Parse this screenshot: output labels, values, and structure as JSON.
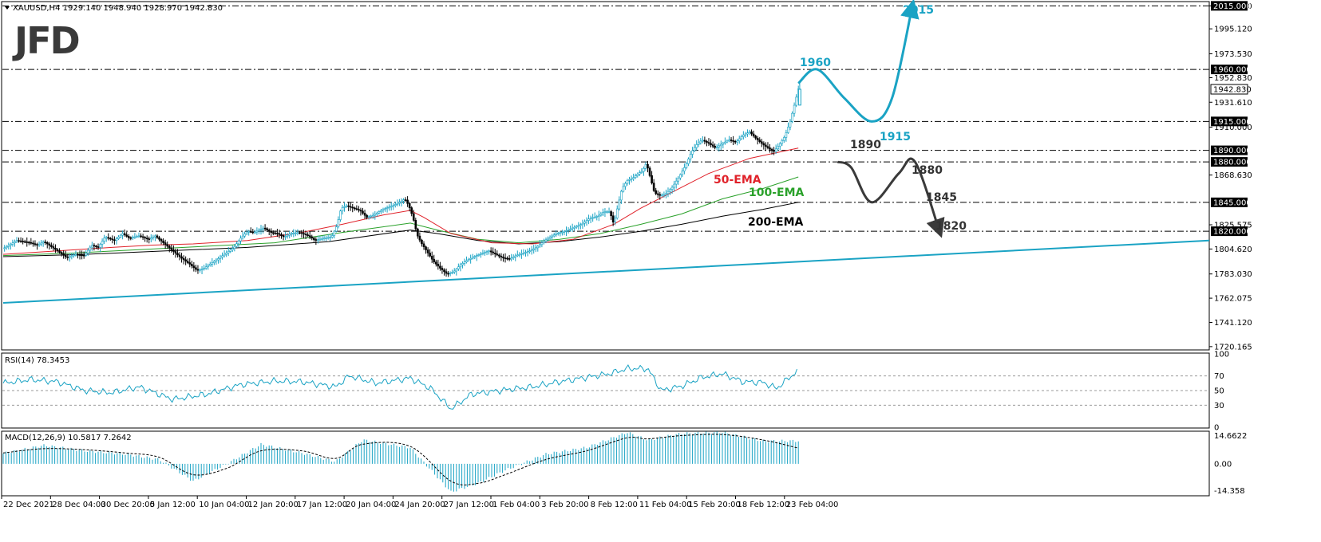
{
  "header": {
    "symbol_info": "XAUUSD,H4  1929.140 1948.940 1928.970 1942.830",
    "logo": "JFD"
  },
  "colors": {
    "candle_up": "#1aa3c4",
    "candle_down": "#000000",
    "ema50": "#e0222a",
    "ema100": "#2aa12a",
    "ema200": "#000000",
    "forecast_up": "#1aa3c4",
    "forecast_down": "#3a3a3a",
    "trendline": "#1aa3c4",
    "rsi": "#1aa3c4",
    "macd_hist": "#1aa3c4",
    "signal": "#000000",
    "level_line": "#000000"
  },
  "main_axis": {
    "ticks": [
      "2015.000",
      "1995.120",
      "1973.530",
      "1952.830",
      "1931.610",
      "1910.000",
      "1868.630",
      "1825.575",
      "1804.620",
      "1783.030",
      "1762.075",
      "1741.120",
      "1720.165"
    ],
    "tick_values": [
      2015.0,
      1995.12,
      1973.53,
      1952.83,
      1931.61,
      1910.0,
      1868.63,
      1825.575,
      1804.62,
      1783.03,
      1762.075,
      1741.12,
      1720.165
    ],
    "ylim": [
      1718,
      2018
    ]
  },
  "levels": {
    "values": [
      2015.0,
      1960.0,
      1915.0,
      1890.0,
      1880.0,
      1845.0,
      1820.0
    ],
    "labels": [
      "2015.000",
      "1960.000",
      "1915.000",
      "1890.000",
      "1880.000",
      "1845.000",
      "1820.000"
    ],
    "current_price": "1942.830"
  },
  "annotations": {
    "up_targets": [
      "1960",
      "1915",
      "2015"
    ],
    "down_targets": [
      "1890",
      "1880",
      "1845",
      "1820"
    ],
    "ema50_label": "50-EMA",
    "ema100_label": "100-EMA",
    "ema200_label": "200-EMA"
  },
  "time_axis": {
    "labels": [
      "22 Dec 2021",
      "28 Dec 04:00",
      "30 Dec 20:00",
      "5 Jan 12:00",
      "10 Jan 04:00",
      "12 Jan 20:00",
      "17 Jan 12:00",
      "20 Jan 04:00",
      "24 Jan 20:00",
      "27 Jan 12:00",
      "1 Feb 04:00",
      "3 Feb 20:00",
      "8 Feb 12:00",
      "11 Feb 04:00",
      "15 Feb 20:00",
      "18 Feb 12:00",
      "23 Feb 04:00"
    ]
  },
  "rsi": {
    "label": "RSI(14) 78.3453",
    "ticks": [
      "100",
      "70",
      "50",
      "30",
      "0"
    ],
    "levels": [
      70,
      50,
      30
    ]
  },
  "macd": {
    "label": "MACD(12,26,9) 10.5817 7.2642",
    "ticks": [
      "14.6622",
      "0.00",
      "-14.358"
    ],
    "ylim": [
      -14.358,
      14.6622
    ]
  },
  "chart_data": {
    "type": "candlestick",
    "symbol": "XAUUSD",
    "timeframe": "H4",
    "ohlc_last": {
      "open": 1929.14,
      "high": 1948.94,
      "low": 1928.97,
      "close": 1942.83
    },
    "close_path": [
      [
        0,
        1805
      ],
      [
        10,
        1812
      ],
      [
        20,
        1810
      ],
      [
        25,
        1808
      ],
      [
        30,
        1811
      ],
      [
        40,
        1803
      ],
      [
        47,
        1797
      ],
      [
        53,
        1800
      ],
      [
        60,
        1799
      ],
      [
        65,
        1808
      ],
      [
        70,
        1806
      ],
      [
        75,
        1815
      ],
      [
        82,
        1812
      ],
      [
        88,
        1818
      ],
      [
        93,
        1814
      ],
      [
        100,
        1816
      ],
      [
        107,
        1813
      ],
      [
        112,
        1816
      ],
      [
        118,
        1810
      ],
      [
        125,
        1803
      ],
      [
        131,
        1797
      ],
      [
        137,
        1792
      ],
      [
        143,
        1786
      ],
      [
        148,
        1788
      ],
      [
        153,
        1792
      ],
      [
        158,
        1796
      ],
      [
        163,
        1800
      ],
      [
        170,
        1806
      ],
      [
        175,
        1814
      ],
      [
        180,
        1820
      ],
      [
        185,
        1819
      ],
      [
        192,
        1823
      ],
      [
        197,
        1819
      ],
      [
        202,
        1818
      ],
      [
        207,
        1815
      ],
      [
        212,
        1818
      ],
      [
        218,
        1819
      ],
      [
        225,
        1816
      ],
      [
        230,
        1812
      ],
      [
        236,
        1814
      ],
      [
        242,
        1815
      ],
      [
        246,
        1825
      ],
      [
        249,
        1840
      ],
      [
        253,
        1842
      ],
      [
        258,
        1840
      ],
      [
        263,
        1838
      ],
      [
        268,
        1832
      ],
      [
        273,
        1834
      ],
      [
        280,
        1839
      ],
      [
        287,
        1842
      ],
      [
        292,
        1845
      ],
      [
        296,
        1848
      ],
      [
        299,
        1842
      ],
      [
        302,
        1832
      ],
      [
        305,
        1817
      ],
      [
        308,
        1810
      ],
      [
        312,
        1803
      ],
      [
        317,
        1794
      ],
      [
        322,
        1788
      ],
      [
        327,
        1783
      ],
      [
        332,
        1785
      ],
      [
        337,
        1791
      ],
      [
        342,
        1795
      ],
      [
        347,
        1798
      ],
      [
        353,
        1801
      ],
      [
        358,
        1803
      ],
      [
        363,
        1800
      ],
      [
        368,
        1797
      ],
      [
        373,
        1796
      ],
      [
        378,
        1799
      ],
      [
        383,
        1801
      ],
      [
        388,
        1803
      ],
      [
        393,
        1806
      ],
      [
        398,
        1811
      ],
      [
        403,
        1815
      ],
      [
        408,
        1818
      ],
      [
        414,
        1820
      ],
      [
        420,
        1823
      ],
      [
        426,
        1826
      ],
      [
        432,
        1831
      ],
      [
        438,
        1833
      ],
      [
        443,
        1837
      ],
      [
        447,
        1837
      ],
      [
        450,
        1826
      ],
      [
        453,
        1842
      ],
      [
        456,
        1857
      ],
      [
        460,
        1864
      ],
      [
        464,
        1866
      ],
      [
        468,
        1870
      ],
      [
        471,
        1872
      ],
      [
        474,
        1879
      ],
      [
        477,
        1866
      ],
      [
        480,
        1853
      ],
      [
        484,
        1851
      ],
      [
        488,
        1852
      ],
      [
        493,
        1858
      ],
      [
        498,
        1867
      ],
      [
        503,
        1877
      ],
      [
        507,
        1888
      ],
      [
        511,
        1895
      ],
      [
        515,
        1899
      ],
      [
        520,
        1896
      ],
      [
        525,
        1892
      ],
      [
        530,
        1896
      ],
      [
        535,
        1899
      ],
      [
        540,
        1897
      ],
      [
        545,
        1903
      ],
      [
        550,
        1906
      ],
      [
        555,
        1900
      ],
      [
        560,
        1895
      ],
      [
        565,
        1891
      ],
      [
        568,
        1889
      ],
      [
        572,
        1895
      ],
      [
        576,
        1902
      ],
      [
        580,
        1915
      ],
      [
        583,
        1929
      ],
      [
        586,
        1943
      ]
    ],
    "ema50_path": [
      [
        0,
        1800
      ],
      [
        40,
        1803
      ],
      [
        80,
        1806
      ],
      [
        110,
        1808
      ],
      [
        140,
        1809
      ],
      [
        180,
        1812
      ],
      [
        220,
        1819
      ],
      [
        250,
        1826
      ],
      [
        280,
        1834
      ],
      [
        300,
        1838
      ],
      [
        310,
        1832
      ],
      [
        330,
        1818
      ],
      [
        360,
        1810
      ],
      [
        390,
        1809
      ],
      [
        420,
        1813
      ],
      [
        450,
        1826
      ],
      [
        470,
        1840
      ],
      [
        490,
        1852
      ],
      [
        520,
        1870
      ],
      [
        550,
        1883
      ],
      [
        586,
        1892
      ]
    ],
    "ema100_path": [
      [
        0,
        1799
      ],
      [
        50,
        1801
      ],
      [
        100,
        1804
      ],
      [
        150,
        1807
      ],
      [
        200,
        1810
      ],
      [
        250,
        1819
      ],
      [
        300,
        1827
      ],
      [
        320,
        1821
      ],
      [
        350,
        1813
      ],
      [
        380,
        1810
      ],
      [
        410,
        1813
      ],
      [
        440,
        1818
      ],
      [
        470,
        1826
      ],
      [
        500,
        1835
      ],
      [
        530,
        1848
      ],
      [
        560,
        1857
      ],
      [
        586,
        1867
      ]
    ],
    "ema200_path": [
      [
        0,
        1798
      ],
      [
        60,
        1800
      ],
      [
        120,
        1803
      ],
      [
        180,
        1806
      ],
      [
        240,
        1811
      ],
      [
        300,
        1821
      ],
      [
        320,
        1818
      ],
      [
        350,
        1812
      ],
      [
        380,
        1809
      ],
      [
        410,
        1811
      ],
      [
        440,
        1815
      ],
      [
        470,
        1820
      ],
      [
        500,
        1826
      ],
      [
        530,
        1833
      ],
      [
        560,
        1839
      ],
      [
        586,
        1845
      ]
    ],
    "trendline": [
      [
        0,
        1758
      ],
      [
        900,
        1812
      ]
    ],
    "forecast_up": [
      [
        586,
        1948
      ],
      [
        600,
        1960
      ],
      [
        620,
        1935
      ],
      [
        640,
        1915
      ],
      [
        655,
        1935
      ],
      [
        670,
        2015
      ]
    ],
    "forecast_down": [
      [
        615,
        1880
      ],
      [
        625,
        1875
      ],
      [
        640,
        1845
      ],
      [
        660,
        1870
      ],
      [
        672,
        1880
      ],
      [
        690,
        1820
      ]
    ],
    "rsi_path": [
      [
        0,
        60
      ],
      [
        20,
        65
      ],
      [
        40,
        62
      ],
      [
        60,
        50
      ],
      [
        80,
        47
      ],
      [
        100,
        55
      ],
      [
        125,
        38
      ],
      [
        150,
        45
      ],
      [
        175,
        58
      ],
      [
        200,
        63
      ],
      [
        220,
        62
      ],
      [
        245,
        55
      ],
      [
        255,
        70
      ],
      [
        275,
        60
      ],
      [
        300,
        67
      ],
      [
        315,
        53
      ],
      [
        330,
        25
      ],
      [
        345,
        45
      ],
      [
        370,
        51
      ],
      [
        390,
        55
      ],
      [
        410,
        62
      ],
      [
        430,
        68
      ],
      [
        447,
        73
      ],
      [
        460,
        80
      ],
      [
        475,
        80
      ],
      [
        485,
        50
      ],
      [
        500,
        56
      ],
      [
        515,
        68
      ],
      [
        530,
        73
      ],
      [
        545,
        62
      ],
      [
        560,
        61
      ],
      [
        570,
        53
      ],
      [
        586,
        78
      ]
    ],
    "macd_hist_path": [
      [
        0,
        4.8
      ],
      [
        30,
        8.5
      ],
      [
        60,
        6.0
      ],
      [
        90,
        4.5
      ],
      [
        115,
        2.0
      ],
      [
        140,
        -8.0
      ],
      [
        165,
        0.0
      ],
      [
        190,
        9.0
      ],
      [
        220,
        5.0
      ],
      [
        245,
        1.0
      ],
      [
        265,
        11.0
      ],
      [
        300,
        7.5
      ],
      [
        330,
        -13.0
      ],
      [
        350,
        -9.0
      ],
      [
        370,
        -3.0
      ],
      [
        400,
        4.5
      ],
      [
        430,
        7.5
      ],
      [
        460,
        14.5
      ],
      [
        475,
        11.0
      ],
      [
        500,
        14.0
      ],
      [
        530,
        14.5
      ],
      [
        560,
        10.5
      ],
      [
        586,
        10.58
      ]
    ],
    "macd_signal_path": [
      [
        0,
        5.0
      ],
      [
        30,
        7.0
      ],
      [
        60,
        6.5
      ],
      [
        90,
        5.0
      ],
      [
        115,
        3.0
      ],
      [
        140,
        -5.0
      ],
      [
        165,
        -2.0
      ],
      [
        190,
        6.0
      ],
      [
        220,
        6.0
      ],
      [
        245,
        2.5
      ],
      [
        265,
        9.0
      ],
      [
        300,
        8.0
      ],
      [
        330,
        -8.0
      ],
      [
        350,
        -9.0
      ],
      [
        370,
        -5.0
      ],
      [
        400,
        2.0
      ],
      [
        430,
        6.0
      ],
      [
        460,
        12.0
      ],
      [
        475,
        11.5
      ],
      [
        500,
        13.0
      ],
      [
        530,
        13.5
      ],
      [
        560,
        11.0
      ],
      [
        586,
        7.26
      ]
    ]
  }
}
